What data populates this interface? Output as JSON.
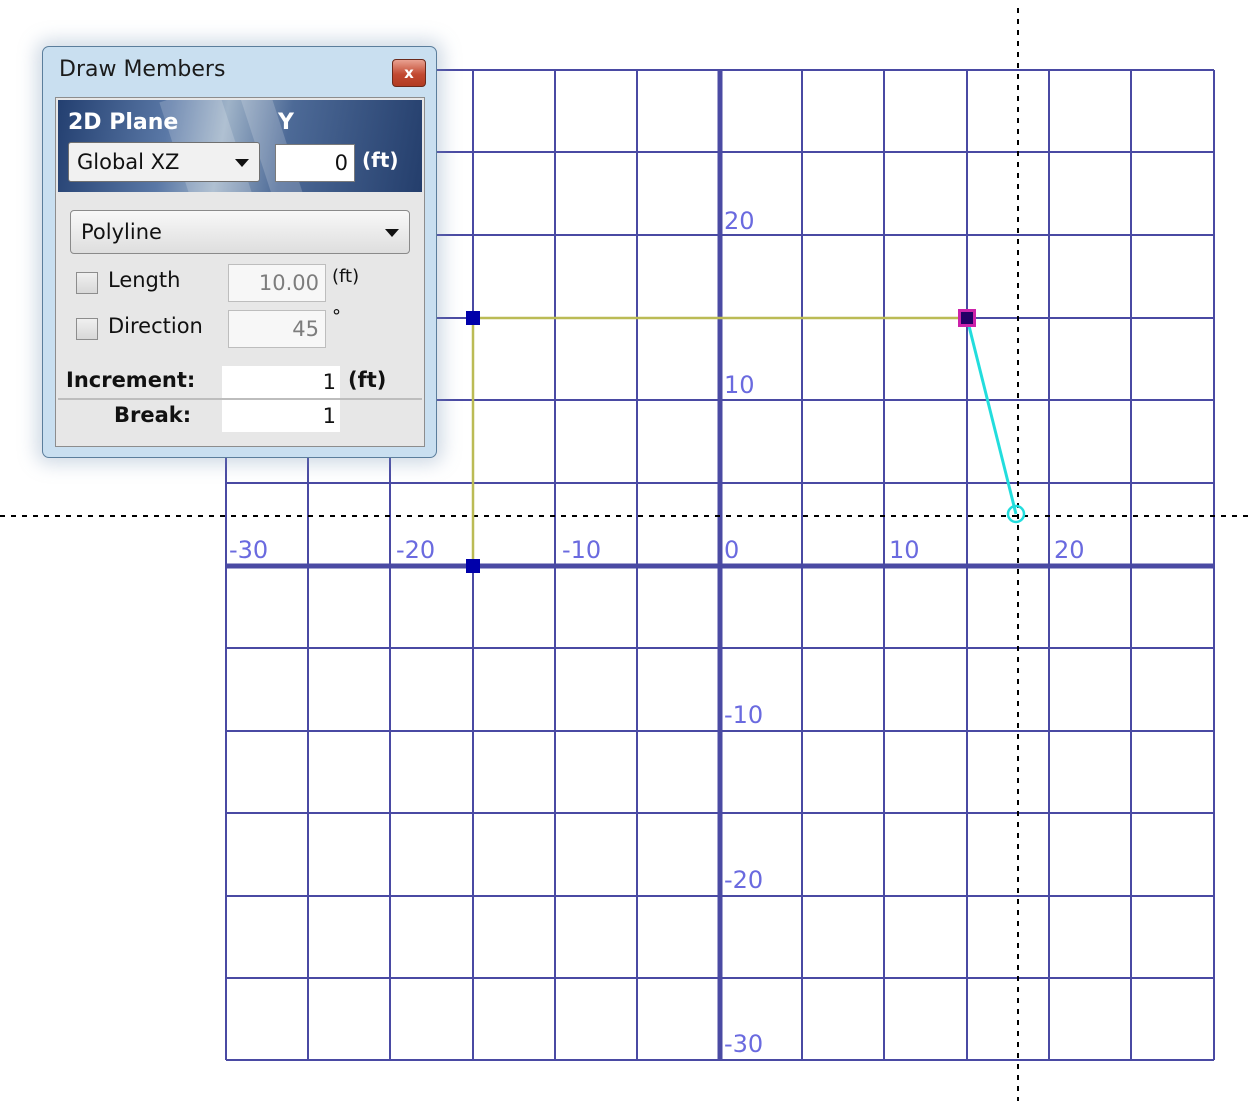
{
  "grid": {
    "x_labels": [
      "-30",
      "-20",
      "-10",
      "0",
      "10",
      "20"
    ],
    "y_labels": [
      "20",
      "10",
      "-10",
      "-20",
      "-30"
    ],
    "grid_color": "#4a4aa3",
    "label_color": "#6a6adf",
    "guide_color": "#bbbb55",
    "member_color": "#22dddd",
    "node_color": "#0000aa"
  },
  "dialog": {
    "title": "Draw Members",
    "close_label": "x",
    "plane_label": "2D Plane",
    "coord_label": "Y",
    "plane_value": "Global XZ",
    "coord_value": "0",
    "coord_unit": "(ft)",
    "mode_value": "Polyline",
    "length_label": "Length",
    "length_value": "10.00",
    "length_unit": "(ft)",
    "direction_label": "Direction",
    "direction_value": "45",
    "direction_unit": "°",
    "increment_label": "Increment:",
    "increment_value": "1",
    "increment_unit": "(ft)",
    "break_label": "Break:",
    "break_value": "1"
  }
}
